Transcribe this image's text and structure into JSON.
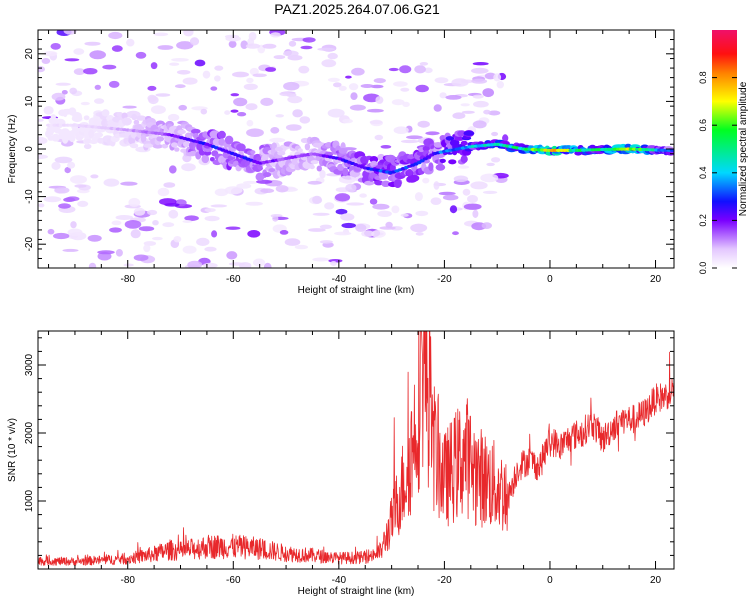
{
  "title": "PAZ1.2025.264.07.06.G21",
  "chart_data": [
    {
      "type": "heatmap",
      "xlabel": "Height of straight line (km)",
      "ylabel": "Frequency (Hz)",
      "xlim": [
        -97,
        23.5
      ],
      "ylim": [
        -25,
        25
      ],
      "x_ticks": [
        -80,
        -60,
        -40,
        -20,
        0,
        20
      ],
      "x_tick_labels": [
        "-80",
        "-60",
        "-40",
        "-20",
        "0",
        "20"
      ],
      "y_ticks": [
        -20,
        -10,
        0,
        10,
        20
      ],
      "y_tick_labels": [
        "-20",
        "-10",
        "0",
        "10",
        "20"
      ],
      "colorbar": {
        "label": "Normalized spectral amplitude",
        "range": [
          0,
          1
        ],
        "ticks": [
          0.0,
          0.2,
          0.4,
          0.6,
          0.8
        ],
        "tick_labels": [
          "0.0",
          "0.2",
          "0.4",
          "0.6",
          "0.8"
        ]
      },
      "ridge": {
        "x": [
          -90,
          -80,
          -72,
          -65,
          -60,
          -55,
          -50,
          -45,
          -40,
          -35,
          -30,
          -25,
          -22,
          -20,
          -15,
          -10,
          -5,
          0,
          5,
          10,
          15,
          20,
          23
        ],
        "y": [
          5,
          4,
          3,
          1,
          -1,
          -3,
          -2,
          -1,
          -2,
          -4,
          -5,
          -3,
          -1,
          -0.5,
          0.5,
          1,
          0,
          -0.3,
          -0.3,
          -0.1,
          0,
          -0.2,
          -0.3
        ],
        "amplitude": [
          0.05,
          0.12,
          0.2,
          0.28,
          0.3,
          0.25,
          0.18,
          0.18,
          0.25,
          0.3,
          0.35,
          0.3,
          0.3,
          0.38,
          0.45,
          0.5,
          0.55,
          0.85,
          0.6,
          0.55,
          0.85,
          0.45,
          0.35
        ]
      }
    },
    {
      "type": "line",
      "xlabel": "Height of straight line (km)",
      "ylabel": "SNR (10 * v/v)",
      "xlim": [
        -97,
        23.5
      ],
      "ylim": [
        0,
        3500
      ],
      "x_ticks": [
        -80,
        -60,
        -40,
        -20,
        0,
        20
      ],
      "x_tick_labels": [
        "-80",
        "-60",
        "-40",
        "-20",
        "0",
        "20"
      ],
      "y_ticks": [
        1000,
        2000,
        3000
      ],
      "y_tick_labels": [
        "1000",
        "2000",
        "3000"
      ],
      "color": "#e8282b",
      "series": [
        {
          "x": [
            -97,
            -90,
            -85,
            -80,
            -75,
            -72,
            -70,
            -65,
            -60,
            -55,
            -50,
            -45,
            -40,
            -35,
            -32,
            -30,
            -28,
            -26,
            -25,
            -24,
            -23,
            -22,
            -20,
            -18,
            -16,
            -14,
            -12,
            -10,
            -8,
            -6,
            -4,
            -2,
            0,
            2,
            4,
            6,
            8,
            10,
            12,
            14,
            16,
            18,
            20,
            22,
            23.5
          ],
          "y": [
            120,
            110,
            130,
            150,
            220,
            280,
            260,
            330,
            330,
            300,
            230,
            200,
            160,
            170,
            260,
            700,
            1200,
            1800,
            2400,
            3200,
            2600,
            1800,
            1300,
            1500,
            1700,
            1400,
            1300,
            1200,
            1050,
            1500,
            1600,
            1500,
            1900,
            1800,
            1950,
            2000,
            2150,
            1900,
            2100,
            2200,
            2200,
            2300,
            2500,
            2550,
            2650
          ]
        }
      ]
    }
  ]
}
